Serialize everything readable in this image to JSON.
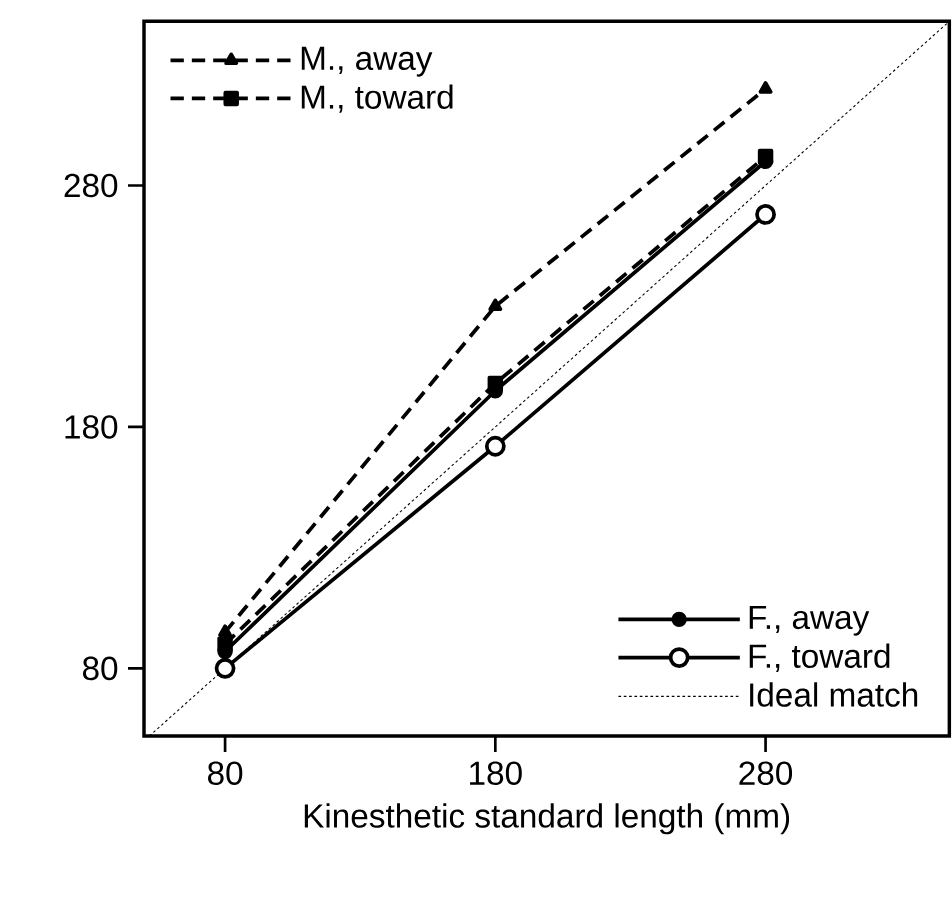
{
  "chart_data": {
    "type": "line",
    "xlabel": "Kinesthetic standard length (mm)",
    "xlim": [
      50,
      348
    ],
    "ylim": [
      52,
      348
    ],
    "xticks": [
      80,
      180,
      280
    ],
    "yticks": [
      80,
      180,
      280
    ],
    "legend": "top left",
    "grid": false,
    "series": [
      {
        "name": "M.,  away",
        "color": "#000000",
        "line_style": "dashed",
        "marker": "triangle",
        "x": [
          80,
          180,
          280
        ],
        "values": [
          95,
          230,
          320
        ]
      },
      {
        "name": "M.,  toward",
        "color": "#000000",
        "line_style": "dashed",
        "marker": "square",
        "x": [
          80,
          180,
          280
        ],
        "values": [
          90,
          198,
          292
        ]
      },
      {
        "name": "F., away",
        "color": "#000000",
        "line_style": "solid",
        "marker": "circle",
        "x": [
          80,
          180,
          280
        ],
        "values": [
          87,
          195,
          290
        ]
      },
      {
        "name": "F.,  toward",
        "color": "#000000",
        "line_style": "solid",
        "marker": "circle",
        "x": [
          80,
          180,
          280
        ],
        "values": [
          80,
          172,
          268
        ]
      },
      {
        "name": "Ideal match",
        "color": "#000000",
        "line_style": "dotted",
        "marker": "none",
        "x": [
          52,
          348
        ],
        "values": [
          52,
          348
        ]
      }
    ]
  }
}
